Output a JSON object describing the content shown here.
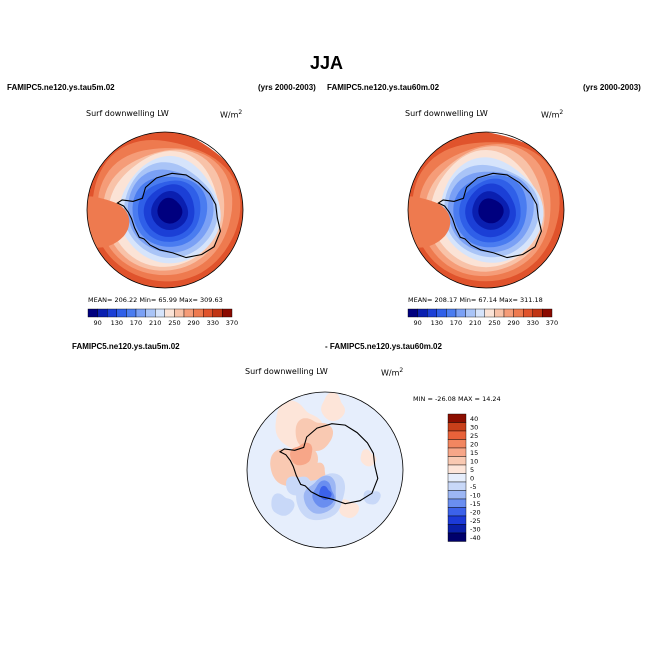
{
  "title": "JJA",
  "colors": {
    "base": [
      "#00007f",
      "#0a1fb0",
      "#1b3fd6",
      "#2f5fe8",
      "#4a7cf0",
      "#7aa0f5",
      "#a9c4f7",
      "#d6e4fb",
      "#fbe3d6",
      "#f8c2a8",
      "#f59c78",
      "#ee7a4f",
      "#e0532c",
      "#c03514",
      "#8b0a00"
    ],
    "diff": [
      "#00006b",
      "#0a1fa8",
      "#1c3ad8",
      "#3c62ea",
      "#6a8ef0",
      "#9cb6f4",
      "#c8d8f8",
      "#e6eefc",
      "#fde5d9",
      "#f9c9b2",
      "#f7a688",
      "#f28660",
      "#e8623a",
      "#c8401a",
      "#8b0e00"
    ]
  },
  "chart_data": [
    {
      "type": "heatmap",
      "projection": "south polar stereographic",
      "left_label": "FAMIPC5.ne120.ys.tau5m.02",
      "right_label": "(yrs 2000-2003)",
      "variable": "Surf downwelling LW",
      "units": "W/m",
      "units_sup": "2",
      "stats": {
        "mean": "206.22",
        "min": "65.99",
        "max": "309.63",
        "text": "MEAN= 206.22   Min=  65.99   Max= 309.63"
      },
      "colorbar_ticks": [
        "90",
        "130",
        "170",
        "210",
        "250",
        "290",
        "330",
        "370"
      ],
      "levels": [
        70,
        90,
        110,
        130,
        150,
        170,
        190,
        210,
        230,
        250,
        270,
        290,
        310,
        330,
        350,
        370
      ]
    },
    {
      "type": "heatmap",
      "projection": "south polar stereographic",
      "left_label": "FAMIPC5.ne120.ys.tau60m.02",
      "right_label": "(yrs 2000-2003)",
      "variable": "Surf downwelling LW",
      "units": "W/m",
      "units_sup": "2",
      "stats": {
        "mean": "208.17",
        "min": "67.14",
        "max": "311.18",
        "text": "MEAN= 208.17   Min=  67.14   Max= 311.18"
      },
      "colorbar_ticks": [
        "90",
        "130",
        "170",
        "210",
        "250",
        "290",
        "330",
        "370"
      ],
      "levels": [
        70,
        90,
        110,
        130,
        150,
        170,
        190,
        210,
        230,
        250,
        270,
        290,
        310,
        330,
        350,
        370
      ]
    },
    {
      "type": "heatmap",
      "projection": "south polar stereographic",
      "left_label": "FAMIPC5.ne120.ys.tau5m.02",
      "right_label": "- FAMIPC5.ne120.ys.tau60m.02",
      "variable": "Surf downwelling LW",
      "units": "W/m",
      "units_sup": "2",
      "stats": {
        "min": "-26.08",
        "max": "14.24",
        "text": "MIN = -26.08  MAX =  14.24"
      },
      "colorbar_ticks": [
        "40",
        "30",
        "25",
        "20",
        "15",
        "10",
        "5",
        "0",
        "-5",
        "-10",
        "-15",
        "-20",
        "-25",
        "-30",
        "-40"
      ]
    }
  ]
}
